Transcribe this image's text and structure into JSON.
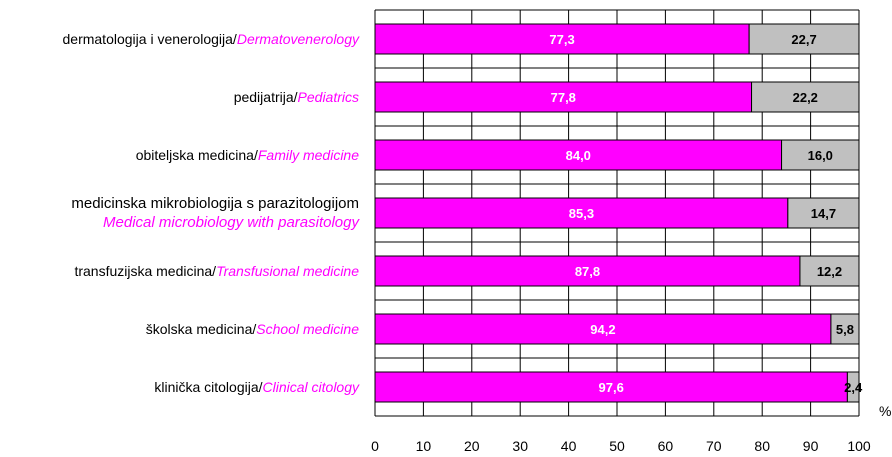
{
  "chart_data": {
    "type": "bar",
    "orientation": "horizontal",
    "stacked": true,
    "categories": [
      {
        "local": "dermatologija i venerologija",
        "english": "Dermatovenerology"
      },
      {
        "local": "pedijatrija",
        "english": "Pediatrics"
      },
      {
        "local": "obiteljska medicina",
        "english": "Family medicine"
      },
      {
        "local": "medicinska mikrobiologija s parazitologijom",
        "english": "Medical microbiology with parasitology"
      },
      {
        "local": "transfuzijska medicina",
        "english": "Transfusional medicine"
      },
      {
        "local": "školska medicina",
        "english": "School medicine"
      },
      {
        "local": "klinička citologija",
        "english": "Clinical citology"
      }
    ],
    "series": [
      {
        "color": "#ff00ff",
        "label_color": "#ffffff",
        "values": [
          77.3,
          77.8,
          84.0,
          85.3,
          87.8,
          94.2,
          97.6
        ],
        "labels": [
          "77,3",
          "77,8",
          "84,0",
          "85,3",
          "87,8",
          "94,2",
          "97,6"
        ]
      },
      {
        "color": "#c0c0c0",
        "label_color": "#000000",
        "values": [
          22.7,
          22.2,
          16.0,
          14.7,
          12.2,
          5.8,
          2.4
        ],
        "labels": [
          "22,7",
          "22,2",
          "16,0",
          "14,7",
          "12,2",
          "5,8",
          "2,4"
        ]
      }
    ],
    "x_ticks": [
      "0",
      "10",
      "20",
      "30",
      "40",
      "50",
      "60",
      "70",
      "80",
      "90",
      "100"
    ],
    "xlim": [
      0,
      100
    ],
    "unit": "%",
    "grid": true
  }
}
